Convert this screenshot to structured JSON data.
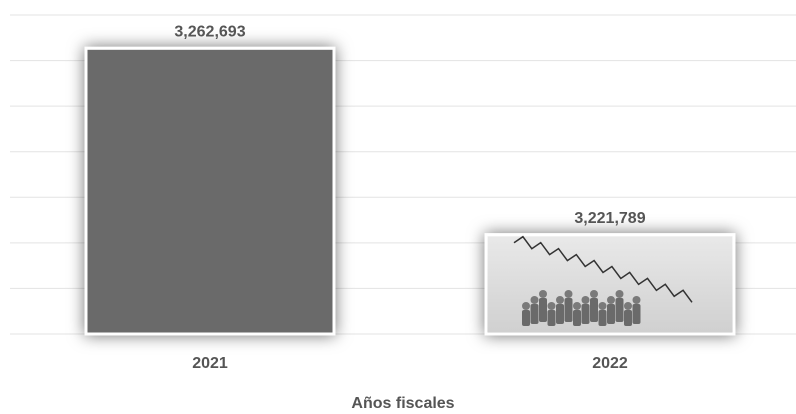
{
  "chart_data": {
    "type": "bar",
    "categories": [
      "2021",
      "2022"
    ],
    "values": [
      3262693,
      3221789
    ],
    "value_labels": [
      "3,262,693",
      "3,221,789"
    ],
    "colors": [
      "#6b6b6b",
      "#dcdcdc"
    ],
    "x_label": "Años fiscales",
    "ylim": [
      3200000,
      3270000
    ],
    "yticks": [
      3200000,
      3210000,
      3220000,
      3230000,
      3240000,
      3250000,
      3260000,
      3270000
    ],
    "grid": true
  }
}
